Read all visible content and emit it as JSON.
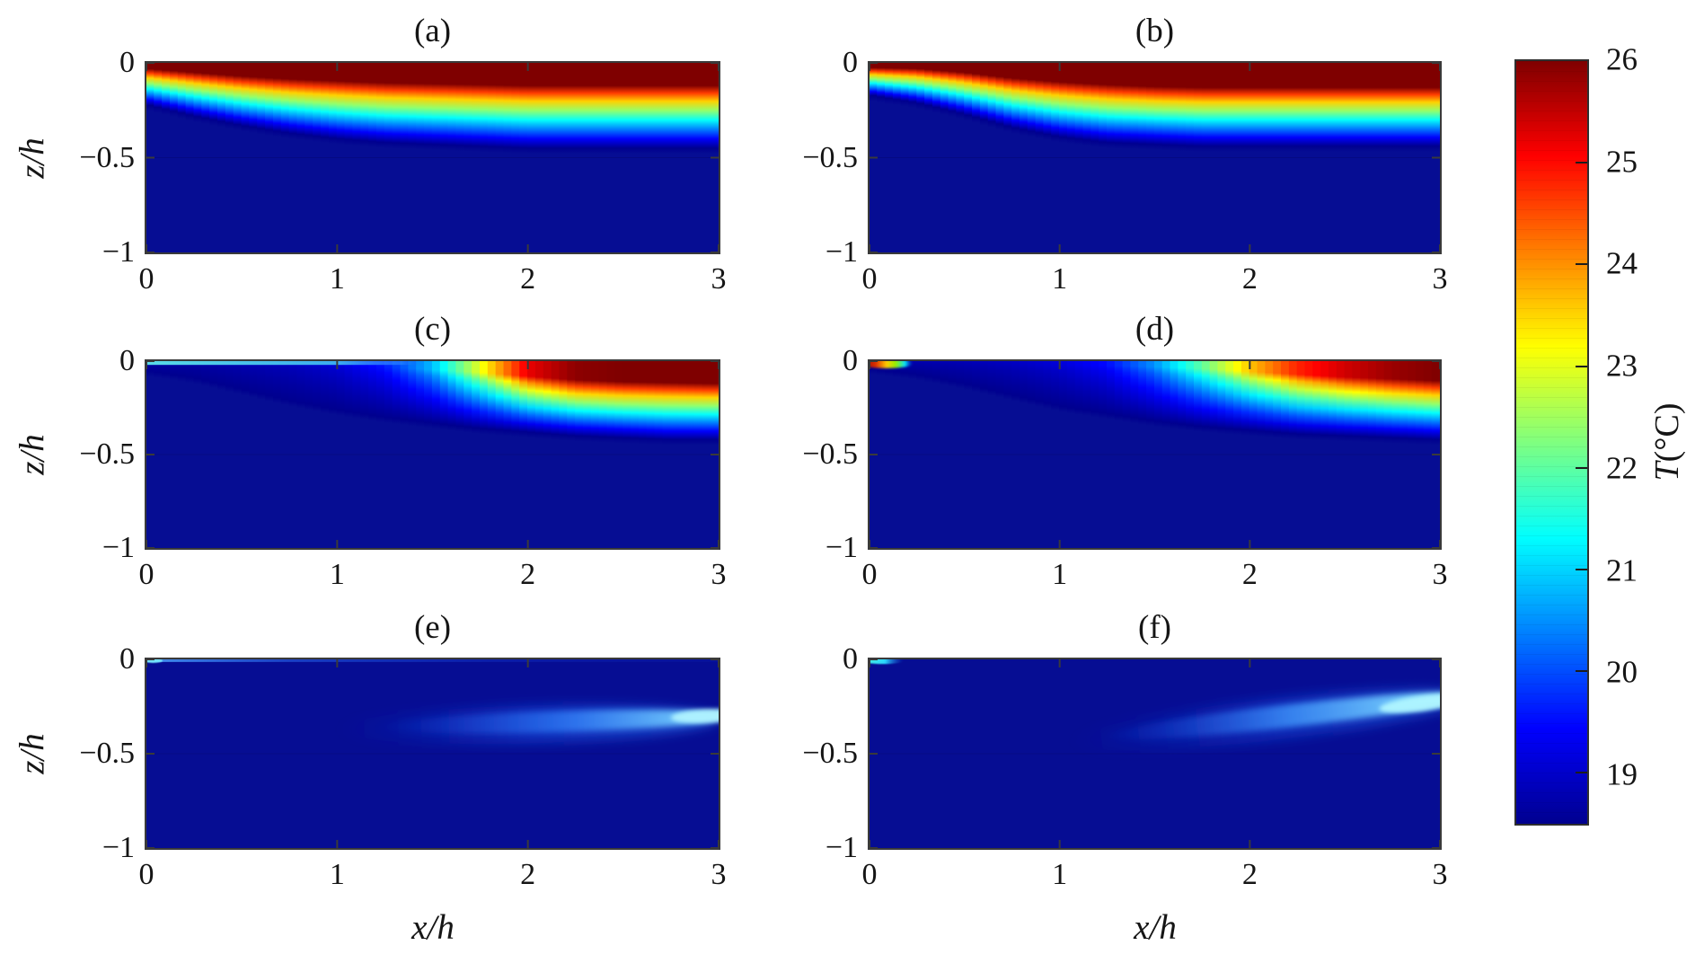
{
  "axes": {
    "x_label": "x/h",
    "y_label": "z/h",
    "x_range": [
      0,
      3
    ],
    "z_range": [
      -1,
      0
    ],
    "x_tick_labels": [
      "0",
      "1",
      "2",
      "3"
    ],
    "y_tick_labels": [
      "0",
      "−0.5",
      "−1"
    ]
  },
  "colorbar": {
    "symbol": "T",
    "unit": "(°C)",
    "min_C": 18.5,
    "max_C": 26,
    "tick_values": [
      26,
      25,
      24,
      23,
      22,
      21,
      20,
      19
    ],
    "tick_labels": [
      "26",
      "25",
      "24",
      "23",
      "22",
      "21",
      "20",
      "19"
    ],
    "marked_ticks": [
      25,
      24,
      23,
      22,
      21,
      20,
      19
    ],
    "border_color": "#2e2e2e"
  },
  "chart_data": {
    "type": "heatmap",
    "layout": "2 columns x 3 rows of temperature contour panels sharing one jet colorbar",
    "colormap": "jet",
    "temperature_range_C": [
      18.5,
      26
    ],
    "deep_color": "#060D93",
    "jet_anchors": [
      [
        0.0,
        [
          0,
          0,
          143
        ]
      ],
      [
        0.125,
        [
          0,
          0,
          255
        ]
      ],
      [
        0.375,
        [
          0,
          255,
          255
        ]
      ],
      [
        0.625,
        [
          255,
          255,
          0
        ]
      ],
      [
        0.875,
        [
          255,
          0,
          0
        ]
      ],
      [
        1.0,
        [
          127,
          0,
          0
        ]
      ]
    ],
    "x_samples": [
      0,
      0.25,
      0.5,
      0.75,
      1,
      1.25,
      1.5,
      1.75,
      2,
      2.25,
      2.5,
      2.75,
      3
    ],
    "panels": [
      {
        "id": "a",
        "title": "(a)",
        "model": "stratified",
        "description": "Warm surface layer (26 C) over cold deep water; mixed layer thin at x=0 and deepening to z/h ~ -0.45 by x ~ 1.5",
        "surface_T_C": [
          26,
          26,
          26,
          26,
          26,
          26,
          26,
          26,
          26,
          26,
          26,
          26,
          26
        ],
        "cap_depth_zh": [
          0.03,
          0.05,
          0.07,
          0.085,
          0.095,
          0.105,
          0.11,
          0.115,
          0.12,
          0.12,
          0.12,
          0.12,
          0.12
        ],
        "mixed_depth_zh": [
          0.22,
          0.28,
          0.33,
          0.37,
          0.4,
          0.42,
          0.43,
          0.44,
          0.45,
          0.45,
          0.45,
          0.45,
          0.45
        ],
        "overlays": [
          {
            "type": "hline",
            "z": -0.5,
            "color": "rgba(0,0,50,0.16)"
          }
        ]
      },
      {
        "id": "b",
        "title": "(b)",
        "model": "stratified",
        "description": "Like (a) but layer very thin at inlet, sigmoid deepening between x ~ 0.3 and 1, constant ~ -0.44 after",
        "surface_T_C": [
          26,
          26,
          26,
          26,
          26,
          26,
          26,
          26,
          26,
          26,
          26,
          26,
          26
        ],
        "cap_depth_zh": [
          0.025,
          0.03,
          0.05,
          0.08,
          0.1,
          0.115,
          0.125,
          0.13,
          0.13,
          0.13,
          0.13,
          0.13,
          0.13
        ],
        "mixed_depth_zh": [
          0.17,
          0.21,
          0.27,
          0.34,
          0.39,
          0.42,
          0.43,
          0.44,
          0.44,
          0.44,
          0.44,
          0.44,
          0.44
        ],
        "overlays": [
          {
            "type": "hline",
            "z": -0.5,
            "color": "rgba(0,0,50,0.16)"
          }
        ]
      },
      {
        "id": "c",
        "title": "(c)",
        "model": "stratified",
        "description": "Cold upstream water with thin cyan surface film to x ~ 1.2; sharp warming front near x ~ 1.6-2 with hot layer downstream",
        "surface_T_C": [
          18.7,
          18.7,
          18.8,
          18.9,
          19.1,
          19.6,
          20.8,
          23.0,
          25.2,
          25.9,
          26,
          26,
          26
        ],
        "cap_depth_zh": [
          0.004,
          0.006,
          0.01,
          0.014,
          0.02,
          0.03,
          0.045,
          0.06,
          0.08,
          0.1,
          0.11,
          0.115,
          0.12
        ],
        "mixed_depth_zh": [
          0.05,
          0.09,
          0.15,
          0.21,
          0.26,
          0.3,
          0.33,
          0.36,
          0.38,
          0.4,
          0.41,
          0.42,
          0.42
        ],
        "overlays": [
          {
            "type": "strip",
            "x0": 0,
            "x1": 1.45,
            "z0": 0,
            "z1": -0.02,
            "stops": [
              [
                0,
                "rgba(95,230,235,0.95)"
              ],
              [
                0.7,
                "rgba(70,200,245,0.85)"
              ],
              [
                0.92,
                "rgba(60,160,255,0.45)"
              ],
              [
                1,
                "rgba(30,90,230,0)"
              ]
            ]
          },
          {
            "type": "hline",
            "z": -0.5,
            "color": "rgba(0,0,50,0.16)"
          }
        ]
      },
      {
        "id": "d",
        "title": "(d)",
        "model": "stratified",
        "description": "Diffuse warming front shifted downstream (x > 1.8); small multicoloured hot spot at the surface inlet corner",
        "surface_T_C": [
          18.8,
          18.75,
          18.8,
          18.9,
          19.1,
          19.5,
          20.5,
          22.0,
          23.6,
          24.8,
          25.4,
          25.8,
          26
        ],
        "cap_depth_zh": [
          0.003,
          0.005,
          0.008,
          0.012,
          0.016,
          0.022,
          0.03,
          0.04,
          0.055,
          0.07,
          0.085,
          0.095,
          0.105
        ],
        "mixed_depth_zh": [
          0.04,
          0.07,
          0.12,
          0.18,
          0.24,
          0.28,
          0.32,
          0.35,
          0.37,
          0.39,
          0.4,
          0.41,
          0.42
        ],
        "overlays": [
          {
            "type": "ellipse",
            "cx": 0.09,
            "cy": -0.012,
            "rx": 0.14,
            "ry": 0.026,
            "rot": 0,
            "blur": 1.2,
            "stops": [
              [
                0,
                "#7f0000"
              ],
              [
                0.3,
                "#e03000"
              ],
              [
                0.5,
                "#ffcc00"
              ],
              [
                0.68,
                "#8cf000"
              ],
              [
                0.85,
                "#00e0ff"
              ],
              [
                1,
                "rgba(0,70,210,0)"
              ]
            ]
          },
          {
            "type": "hline",
            "z": -0.5,
            "color": "rgba(0,0,50,0.16)"
          }
        ]
      },
      {
        "id": "e",
        "title": "(e)",
        "model": "plume",
        "description": "Nearly uniform cold water (~18.5-19 C); faint light-blue subsurface plume centred near z/h ~ -0.33 growing from x ~ 1 to brightest (~20.5 C) at x = 3; thin bluish surface film at left",
        "overlays": [
          {
            "type": "strip",
            "x0": 0,
            "x1": 3,
            "z0": 0,
            "z1": -0.014,
            "stops": [
              [
                0,
                "rgba(80,170,255,0.85)"
              ],
              [
                0.25,
                "rgba(45,115,245,0.5)"
              ],
              [
                0.6,
                "rgba(25,75,225,0.28)"
              ],
              [
                1,
                "rgba(15,50,200,0.12)"
              ]
            ]
          },
          {
            "type": "ellipse",
            "cx": 0.035,
            "cy": -0.007,
            "rx": 0.05,
            "ry": 0.012,
            "blur": 0.6,
            "fill": "rgba(120,235,255,0.9)"
          },
          {
            "type": "ellipse",
            "cx": 2.0,
            "cy": -0.345,
            "rx": 1.0,
            "ry": 0.1,
            "rot": -1.5,
            "blur": 6,
            "stops": [
              [
                0,
                "rgba(15,45,205,0)"
              ],
              [
                0.5,
                "rgba(25,85,235,0.45)"
              ],
              [
                1,
                "rgba(45,125,250,0.55)"
              ]
            ]
          },
          {
            "type": "ellipse",
            "cx": 2.15,
            "cy": -0.33,
            "rx": 0.92,
            "ry": 0.055,
            "rot": -1.8,
            "blur": 3.5,
            "stops": [
              [
                0,
                "rgba(25,85,240,0)"
              ],
              [
                0.55,
                "rgba(55,140,255,0.7)"
              ],
              [
                0.85,
                "rgba(115,205,255,0.9)"
              ],
              [
                1,
                "rgba(155,232,255,1)"
              ]
            ]
          },
          {
            "type": "ellipse",
            "cx": 2.93,
            "cy": -0.3,
            "rx": 0.18,
            "ry": 0.035,
            "rot": -3,
            "blur": 2.5,
            "fill": "rgba(175,242,255,0.95)"
          },
          {
            "type": "hline",
            "z": -0.5,
            "color": "rgba(0,0,50,0.14)"
          }
        ]
      },
      {
        "id": "f",
        "title": "(f)",
        "model": "plume",
        "description": "Cold water with tilted subsurface plume rising from (x ~ 1.3, z/h ~ -0.4) to (x = 3, z/h ~ -0.2), brightest (~21 C) at right edge; small cyan dash at surface inlet corner",
        "overlays": [
          {
            "type": "ellipse",
            "cx": 0.07,
            "cy": -0.008,
            "rx": 0.11,
            "ry": 0.016,
            "blur": 0.8,
            "stops": [
              [
                0,
                "#49f0d8"
              ],
              [
                0.55,
                "#2bd9ff"
              ],
              [
                1,
                "rgba(20,90,220,0)"
              ]
            ]
          },
          {
            "type": "ellipse",
            "cx": 2.1,
            "cy": -0.32,
            "rx": 1.05,
            "ry": 0.11,
            "rot": -6.5,
            "blur": 6,
            "stops": [
              [
                0,
                "rgba(15,45,205,0)"
              ],
              [
                0.5,
                "rgba(25,85,235,0.4)"
              ],
              [
                1,
                "rgba(45,125,250,0.5)"
              ]
            ]
          },
          {
            "type": "ellipse",
            "cx": 2.2,
            "cy": -0.3,
            "rx": 0.97,
            "ry": 0.06,
            "rot": -6.5,
            "blur": 3.5,
            "stops": [
              [
                0,
                "rgba(25,85,240,0)"
              ],
              [
                0.5,
                "rgba(65,155,255,0.75)"
              ],
              [
                0.85,
                "rgba(125,215,255,0.95)"
              ],
              [
                1,
                "rgba(165,240,255,1)"
              ]
            ]
          },
          {
            "type": "ellipse",
            "cx": 2.9,
            "cy": -0.235,
            "rx": 0.22,
            "ry": 0.04,
            "rot": -7,
            "blur": 2.5,
            "fill": "rgba(175,245,255,0.95)"
          },
          {
            "type": "hline",
            "z": -0.5,
            "color": "rgba(0,0,50,0.14)"
          }
        ]
      }
    ]
  }
}
